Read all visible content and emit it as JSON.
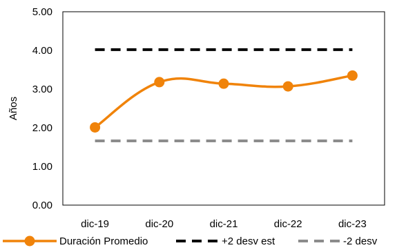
{
  "chart_data": {
    "type": "line",
    "title": "",
    "xlabel": "",
    "ylabel": "Años",
    "ylim": [
      0,
      5
    ],
    "yticks": [
      "0.00",
      "1.00",
      "2.00",
      "3.00",
      "4.00",
      "5.00"
    ],
    "categories": [
      "dic-19",
      "dic-20",
      "dic-21",
      "dic-22",
      "dic-23"
    ],
    "grid": false,
    "legend_position": "bottom",
    "series": [
      {
        "name": "Duración Promedio",
        "values": [
          2.01,
          3.18,
          3.14,
          3.07,
          3.35
        ],
        "color": "#f0830a",
        "style": "smooth-line-markers"
      },
      {
        "name": "+2 desv est",
        "values": [
          4.02,
          4.02,
          4.02,
          4.02,
          4.02
        ],
        "color": "#000000",
        "style": "dashed"
      },
      {
        "name": "-2 desv",
        "values": [
          1.66,
          1.66,
          1.66,
          1.66,
          1.66
        ],
        "color": "#8c8c8c",
        "style": "dashed"
      }
    ]
  }
}
